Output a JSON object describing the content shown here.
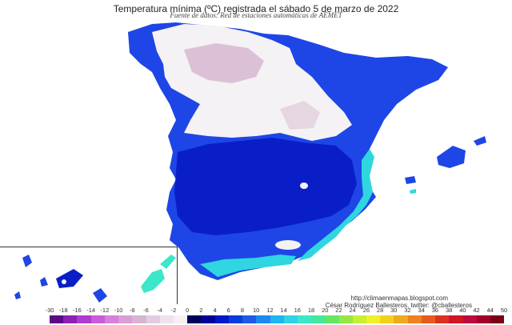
{
  "title": "Temperatura mínima (ºC) registrada el sábado 5 de marzo de 2022",
  "subtitle": "Fuente de datos: Red de estaciones automáticas de AEMET",
  "credits": {
    "url": "http://climaenmapas.blogspot.com",
    "author": "César Rodríguez Ballesteros, twitter: @cballesteros"
  },
  "legend": {
    "ticks": [
      "-30",
      "-18",
      "-16",
      "-14",
      "-12",
      "-10",
      "-8",
      "-6",
      "-4",
      "-2",
      "0",
      "2",
      "4",
      "6",
      "8",
      "10",
      "12",
      "14",
      "16",
      "18",
      "20",
      "22",
      "24",
      "26",
      "28",
      "30",
      "32",
      "34",
      "36",
      "38",
      "40",
      "42",
      "44",
      "50"
    ],
    "colors": [
      "#5c0a8a",
      "#8e1fb5",
      "#b03bd0",
      "#c95cd8",
      "#d77fd9",
      "#dc9cd6",
      "#d8b4d2",
      "#e2cde0",
      "#eee3ec",
      "#f6f0f5",
      "#00005a",
      "#000096",
      "#0019c8",
      "#0a3cdc",
      "#1e5ae6",
      "#1e87f0",
      "#20b4f0",
      "#2fd2e6",
      "#3ce6c8",
      "#46e69b",
      "#64e664",
      "#96e646",
      "#c8f032",
      "#f0f028",
      "#f0d21e",
      "#f0aa1e",
      "#f0821e",
      "#e65a1e",
      "#dc321e",
      "#d21428",
      "#be0a3c",
      "#a0002d",
      "#780014"
    ],
    "unit": "ºC"
  },
  "regions": {
    "cold_north": "#f4f2f4",
    "pink_highlands": "#dcc0d6",
    "dark_blue": "#0a1ec8",
    "mid_blue": "#1e46e6",
    "coast_cyan": "#2fd6e0",
    "inset_islands": "#3ce6c8"
  }
}
